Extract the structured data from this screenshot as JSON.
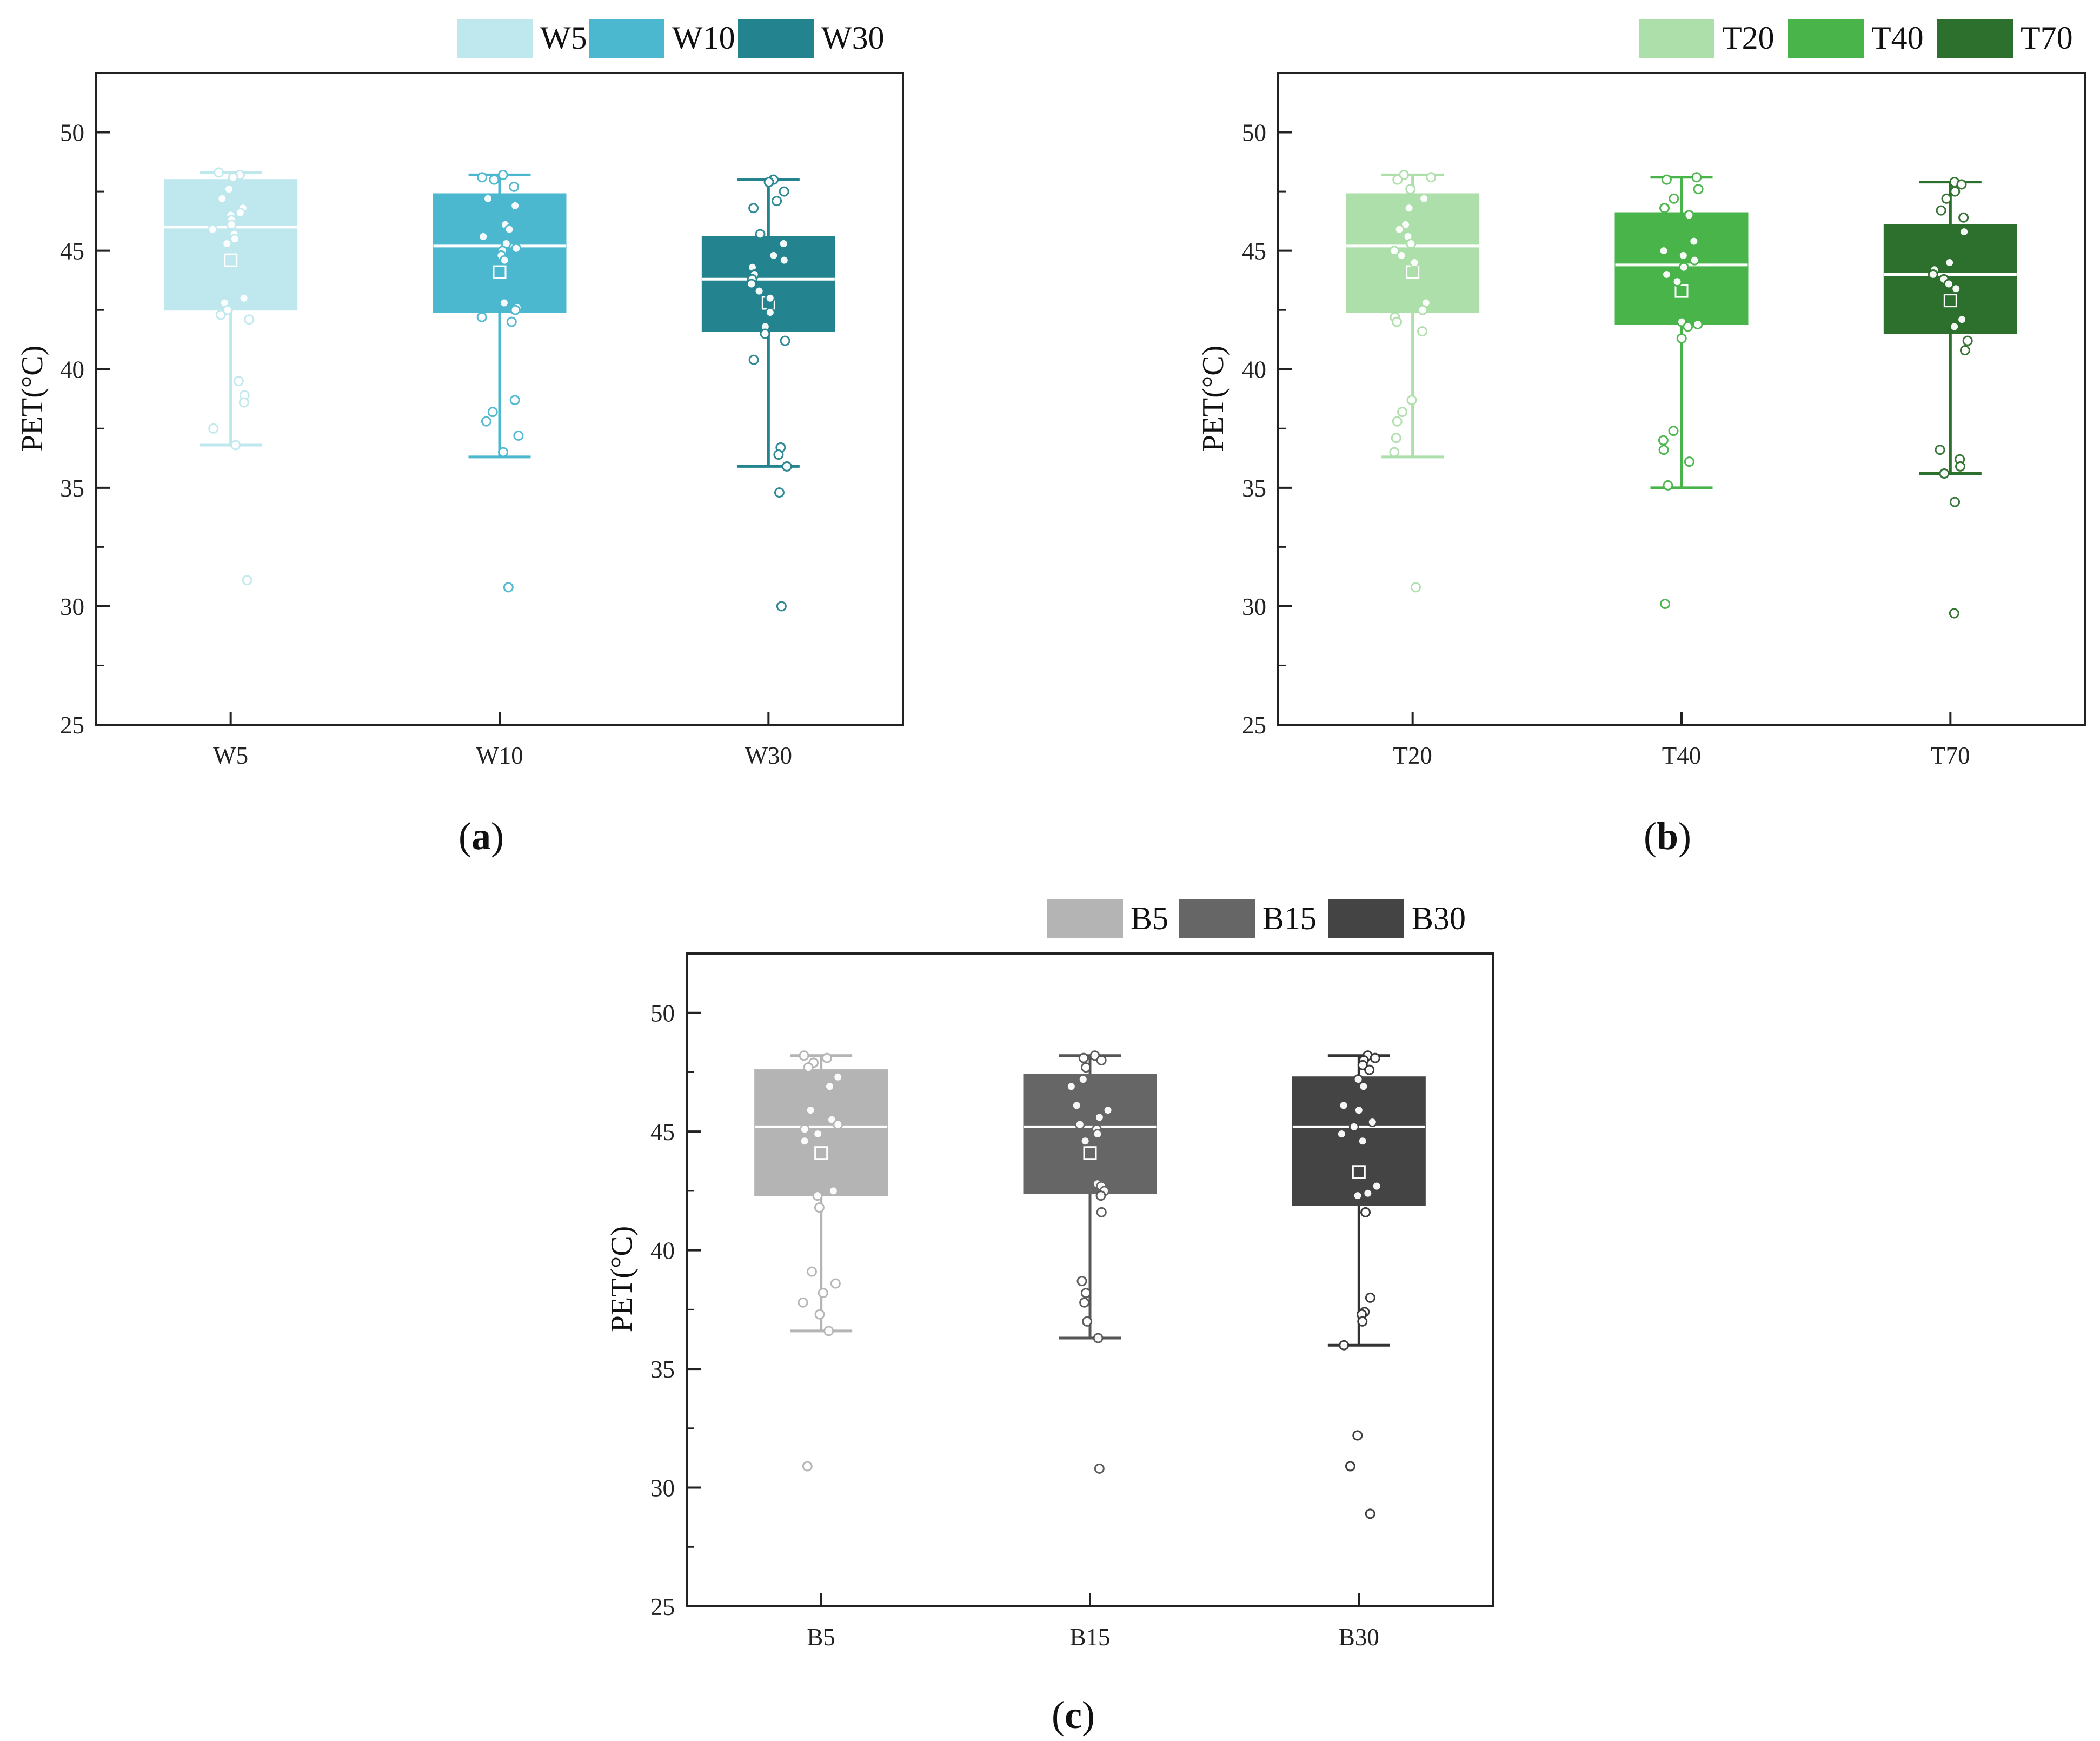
{
  "chart_data": [
    {
      "type": "box",
      "panel": "a",
      "caption_letter": "a",
      "ylabel": "PET(°C)",
      "ylim": [
        25,
        52.5
      ],
      "yticks": [
        25,
        30,
        35,
        40,
        45,
        50
      ],
      "legend": [
        "W5",
        "W10",
        "W30"
      ],
      "groups": [
        {
          "name": "W5",
          "color": "#bfe8ee",
          "whisker_color": "#bfe8ee",
          "q1": 42.5,
          "median": 46.0,
          "q3": 48.0,
          "whisker_low": 36.8,
          "whisker_high": 48.3,
          "mean": 44.6,
          "points": [
            48.3,
            48.2,
            48.1,
            47.6,
            47.2,
            46.8,
            46.6,
            46.5,
            46.3,
            46.1,
            45.9,
            45.7,
            45.5,
            45.3,
            43.0,
            42.8,
            42.5,
            42.3,
            42.1,
            39.5,
            38.9,
            38.6,
            37.5,
            36.8,
            31.1
          ]
        },
        {
          "name": "W10",
          "color": "#4bb8cf",
          "whisker_color": "#4bb8cf",
          "q1": 42.4,
          "median": 45.2,
          "q3": 47.4,
          "whisker_low": 36.3,
          "whisker_high": 48.2,
          "mean": 44.1,
          "points": [
            48.2,
            48.1,
            48.0,
            47.7,
            47.2,
            46.9,
            46.1,
            45.9,
            45.6,
            45.3,
            45.1,
            45.0,
            44.8,
            44.6,
            42.8,
            42.6,
            42.5,
            42.2,
            42.0,
            38.7,
            38.2,
            37.8,
            37.2,
            36.5,
            30.8
          ]
        },
        {
          "name": "W30",
          "color": "#23848f",
          "whisker_color": "#23848f",
          "q1": 41.6,
          "median": 43.8,
          "q3": 45.6,
          "whisker_low": 35.9,
          "whisker_high": 48.0,
          "mean": 42.8,
          "points": [
            48.0,
            47.9,
            47.5,
            47.1,
            46.8,
            45.7,
            45.3,
            44.8,
            44.6,
            44.3,
            44.0,
            43.8,
            43.6,
            43.3,
            43.0,
            42.4,
            41.8,
            41.5,
            41.2,
            40.4,
            36.7,
            36.4,
            35.9,
            34.8,
            30.0
          ]
        }
      ]
    },
    {
      "type": "box",
      "panel": "b",
      "caption_letter": "b",
      "ylabel": "PET(°C)",
      "ylim": [
        25,
        52.5
      ],
      "yticks": [
        25,
        30,
        35,
        40,
        45,
        50
      ],
      "legend": [
        "T20",
        "T40",
        "T70"
      ],
      "groups": [
        {
          "name": "T20",
          "color": "#addfaa",
          "whisker_color": "#addfaa",
          "q1": 42.4,
          "median": 45.2,
          "q3": 47.4,
          "whisker_low": 36.3,
          "whisker_high": 48.2,
          "mean": 44.1,
          "points": [
            48.2,
            48.1,
            48.0,
            47.6,
            47.2,
            46.8,
            46.1,
            45.9,
            45.6,
            45.3,
            45.0,
            44.8,
            44.5,
            42.8,
            42.5,
            42.2,
            42.0,
            41.6,
            38.7,
            38.2,
            37.8,
            37.1,
            36.5,
            30.8
          ]
        },
        {
          "name": "T40",
          "color": "#48b449",
          "whisker_color": "#48b449",
          "q1": 41.9,
          "median": 44.4,
          "q3": 46.6,
          "whisker_low": 35.0,
          "whisker_high": 48.1,
          "mean": 43.3,
          "points": [
            48.1,
            48.0,
            47.6,
            47.2,
            46.8,
            46.5,
            45.4,
            45.0,
            44.8,
            44.6,
            44.3,
            44.0,
            43.7,
            42.0,
            41.9,
            41.8,
            41.3,
            37.4,
            37.0,
            36.6,
            36.1,
            35.1,
            30.1
          ]
        },
        {
          "name": "T70",
          "color": "#2d6f2d",
          "whisker_color": "#2d6f2d",
          "q1": 41.5,
          "median": 44.0,
          "q3": 46.1,
          "whisker_low": 35.6,
          "whisker_high": 47.9,
          "mean": 42.9,
          "points": [
            47.9,
            47.8,
            47.5,
            47.2,
            46.7,
            46.4,
            45.8,
            44.5,
            44.2,
            44.0,
            43.8,
            43.6,
            43.4,
            42.1,
            41.8,
            41.2,
            40.8,
            36.6,
            36.2,
            35.9,
            35.6,
            34.4,
            29.7
          ]
        }
      ]
    },
    {
      "type": "box",
      "panel": "c",
      "caption_letter": "c",
      "ylabel": "PET(°C)",
      "ylim": [
        25,
        52.5
      ],
      "yticks": [
        25,
        30,
        35,
        40,
        45,
        50
      ],
      "legend": [
        "B5",
        "B15",
        "B30"
      ],
      "groups": [
        {
          "name": "B5",
          "color": "#b4b4b4",
          "whisker_color": "#b4b4b4",
          "q1": 42.3,
          "median": 45.2,
          "q3": 47.6,
          "whisker_low": 36.6,
          "whisker_high": 48.2,
          "mean": 44.1,
          "points": [
            48.2,
            48.1,
            47.9,
            47.7,
            47.3,
            46.9,
            45.9,
            45.5,
            45.3,
            45.1,
            44.9,
            44.6,
            42.5,
            42.3,
            41.8,
            39.1,
            38.6,
            38.2,
            37.8,
            37.3,
            36.6,
            30.9
          ]
        },
        {
          "name": "B15",
          "color": "#666666",
          "whisker_color": "#555555",
          "q1": 42.4,
          "median": 45.2,
          "q3": 47.4,
          "whisker_low": 36.3,
          "whisker_high": 48.2,
          "mean": 44.1,
          "points": [
            48.2,
            48.1,
            48.0,
            47.7,
            47.2,
            46.9,
            46.1,
            45.9,
            45.6,
            45.3,
            45.1,
            44.9,
            44.6,
            42.8,
            42.7,
            42.5,
            42.3,
            41.6,
            38.7,
            38.2,
            37.8,
            37.0,
            36.3,
            30.8
          ]
        },
        {
          "name": "B30",
          "color": "#444444",
          "whisker_color": "#333333",
          "q1": 41.9,
          "median": 45.2,
          "q3": 47.3,
          "whisker_low": 36.0,
          "whisker_high": 48.2,
          "mean": 43.3,
          "points": [
            48.2,
            48.1,
            48.0,
            47.8,
            47.6,
            47.2,
            46.9,
            46.1,
            45.9,
            45.4,
            45.2,
            44.9,
            44.6,
            42.7,
            42.4,
            42.3,
            41.6,
            38.0,
            37.4,
            37.3,
            37.0,
            36.0,
            32.2,
            30.9,
            28.9
          ]
        }
      ]
    }
  ]
}
